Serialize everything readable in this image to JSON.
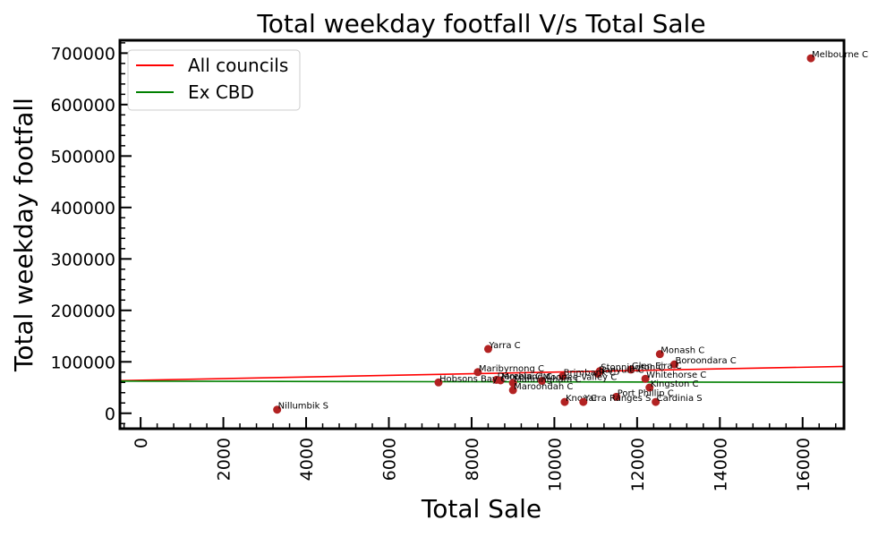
{
  "chart_data": {
    "type": "scatter",
    "title": "Total weekday footfall V/s Total Sale",
    "xlabel": "Total Sale",
    "ylabel": "Total weekday footfall",
    "xlim": [
      -500,
      17000
    ],
    "ylim": [
      -30000,
      725000
    ],
    "xticks": [
      0,
      2000,
      4000,
      6000,
      8000,
      10000,
      12000,
      14000,
      16000
    ],
    "yticks": [
      0,
      100000,
      200000,
      300000,
      400000,
      500000,
      600000,
      700000
    ],
    "grid": false,
    "legend_position": "top-left",
    "colors": {
      "points": "#b22222",
      "all_councils": "#ff0000",
      "ex_cbd": "#008000"
    },
    "lines": [
      {
        "name": "All councils",
        "color": "#ff0000",
        "x": [
          -500,
          17000
        ],
        "y": [
          63500,
          91000
        ]
      },
      {
        "name": "Ex CBD",
        "color": "#008000",
        "x": [
          -500,
          17000
        ],
        "y": [
          62500,
          60000
        ]
      }
    ],
    "points": [
      {
        "label": "Melbourne C",
        "x": 16200,
        "y": 690000
      },
      {
        "label": "Yarra C",
        "x": 8400,
        "y": 125000
      },
      {
        "label": "Monash C",
        "x": 12550,
        "y": 115000
      },
      {
        "label": "Boroondara C",
        "x": 12900,
        "y": 95000
      },
      {
        "label": "Glen Eira C",
        "x": 11850,
        "y": 85000
      },
      {
        "label": "Stonnington C",
        "x": 11100,
        "y": 82000
      },
      {
        "label": "Banyule C",
        "x": 11050,
        "y": 77000
      },
      {
        "label": "Maribyrnong C",
        "x": 8150,
        "y": 80000
      },
      {
        "label": "Brimbank C",
        "x": 10200,
        "y": 72000
      },
      {
        "label": "Whitehorse C",
        "x": 12200,
        "y": 67000
      },
      {
        "label": "Darebin C",
        "x": 8600,
        "y": 65000
      },
      {
        "label": "Moreland C",
        "x": 8700,
        "y": 64000
      },
      {
        "label": "Moonee Valley C",
        "x": 9700,
        "y": 63000
      },
      {
        "label": "Hobsons Bay C",
        "x": 7200,
        "y": 60000
      },
      {
        "label": "Manningham C",
        "x": 9000,
        "y": 59000
      },
      {
        "label": "Kingston C",
        "x": 12300,
        "y": 50000
      },
      {
        "label": "Maroondah C",
        "x": 9000,
        "y": 45000
      },
      {
        "label": "Port Phillip C",
        "x": 11500,
        "y": 32000
      },
      {
        "label": "Knox C",
        "x": 10250,
        "y": 22000
      },
      {
        "label": "Yarra Ranges S",
        "x": 10700,
        "y": 22000
      },
      {
        "label": "Cardinia S",
        "x": 12450,
        "y": 22000
      },
      {
        "label": "Nillumbik S",
        "x": 3300,
        "y": 7000
      }
    ]
  }
}
